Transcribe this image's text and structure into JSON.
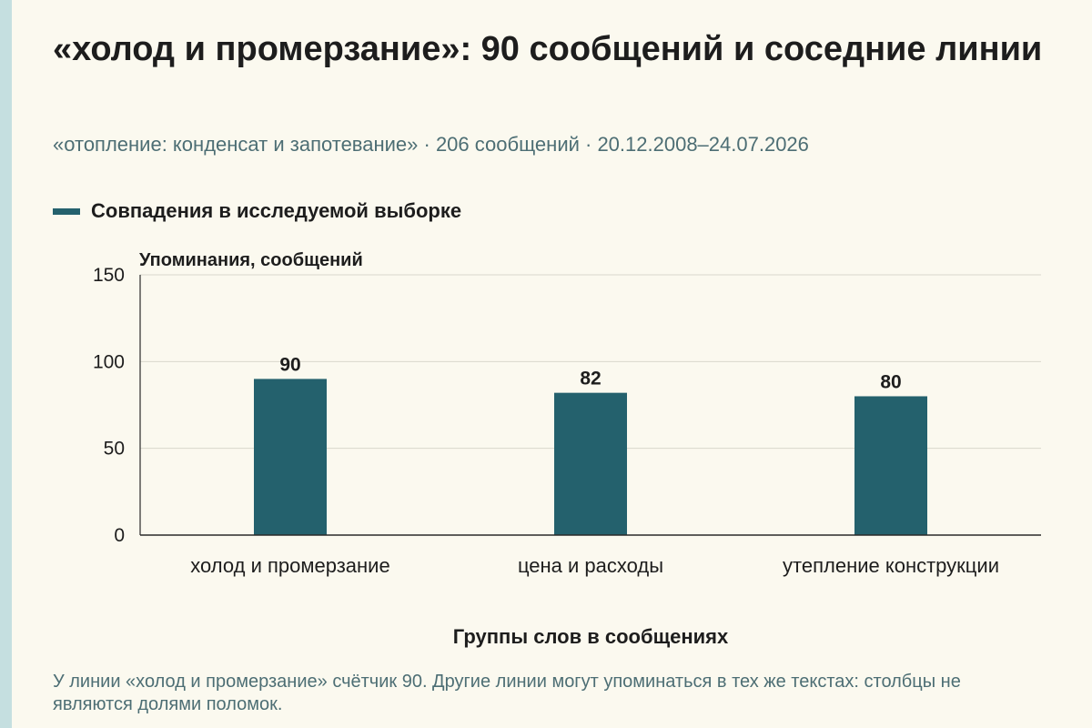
{
  "header": {
    "title": "«холод и промерзание»: 90 сообщений и соседние линии",
    "subtitle": "«отопление: конденсат и запотевание» · 206 сообщений · 20.12.2008–24.07.2026"
  },
  "legend": {
    "label": "Совпадения в исследуемой выборке"
  },
  "footnote": "У линии «холод и промерзание» счётчик 90. Другие линии могут упоминаться в тех же текстах: столбцы не являются долями поломок.",
  "colors": {
    "bar": "#24616d",
    "background": "#fbf9ef",
    "accent": "#c5dfe0",
    "muted_text": "#4d6e74"
  },
  "chart_data": {
    "type": "bar",
    "ylabel": "Упоминания, сообщений",
    "xlabel": "Группы слов в сообщениях",
    "categories": [
      "холод и промерзание",
      "цена и расходы",
      "утепление конструкции"
    ],
    "values": [
      90,
      82,
      80
    ],
    "series": [
      {
        "name": "Совпадения в исследуемой выборке",
        "values": [
          90,
          82,
          80
        ]
      }
    ],
    "ylim": [
      0,
      150
    ],
    "yticks": [
      0,
      50,
      100,
      150
    ],
    "grid": true,
    "legend_position": "top-left"
  }
}
